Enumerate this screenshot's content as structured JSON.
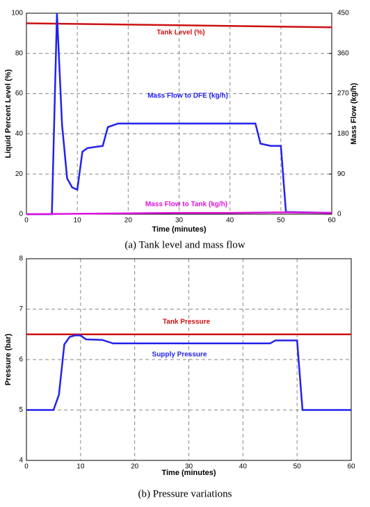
{
  "chart_data": [
    {
      "type": "line",
      "caption": "(a)  Tank  level  and  mass  flow",
      "xlabel": "Time (minutes)",
      "ylabel": "Liquid Percent Level (%)",
      "y2label": "Mass Flow (kg/h)",
      "xlim": [
        0,
        60
      ],
      "xticks": [
        0,
        10,
        20,
        30,
        40,
        50,
        60
      ],
      "ylim": [
        0,
        100
      ],
      "yticks": [
        0,
        20,
        40,
        60,
        80,
        100
      ],
      "y2lim": [
        0,
        450
      ],
      "y2ticks": [
        0,
        90,
        180,
        270,
        360,
        450
      ],
      "grid": true,
      "series": [
        {
          "name": "Tank Level (%)",
          "color": "#cc1111",
          "x": [
            0,
            60
          ],
          "values": [
            95,
            93
          ]
        },
        {
          "name": "Mass Flow to DFE (kg/h)",
          "color": "#2222ee",
          "axis": "y2",
          "x": [
            0,
            5,
            6,
            7,
            8,
            9,
            10,
            11,
            12,
            15,
            16,
            18,
            45,
            46,
            48,
            50,
            51,
            60
          ],
          "values": [
            0,
            0,
            450,
            200,
            80,
            60,
            55,
            140,
            148,
            153,
            195,
            203,
            203,
            158,
            153,
            153,
            5,
            3
          ]
        },
        {
          "name": "Mass Flow to Tank (kg/h)",
          "color": "#dd11dd",
          "axis": "y2",
          "x": [
            0,
            10,
            20,
            30,
            40,
            50,
            51,
            60
          ],
          "values": [
            0,
            1,
            2,
            3,
            3,
            4,
            4,
            3
          ]
        }
      ]
    },
    {
      "type": "line",
      "caption": "(b)  Pressure  variations",
      "xlabel": "Time (minutes)",
      "ylabel": "Pressure (bar)",
      "xlim": [
        0,
        60
      ],
      "xticks": [
        0,
        10,
        20,
        30,
        40,
        50,
        60
      ],
      "ylim": [
        4,
        8
      ],
      "yticks": [
        4,
        5,
        6,
        7,
        8
      ],
      "grid": true,
      "series": [
        {
          "name": "Tank Pressure",
          "color": "#cc1111",
          "x": [
            0,
            60
          ],
          "values": [
            6.5,
            6.5
          ]
        },
        {
          "name": "Supply Pressure",
          "color": "#2222ee",
          "x": [
            0,
            5,
            6,
            7,
            8,
            9,
            10,
            11,
            14,
            16,
            45,
            46,
            50,
            51,
            60
          ],
          "values": [
            5,
            5,
            5.3,
            6.3,
            6.45,
            6.48,
            6.48,
            6.4,
            6.39,
            6.32,
            6.32,
            6.38,
            6.38,
            5,
            5
          ]
        }
      ]
    }
  ]
}
